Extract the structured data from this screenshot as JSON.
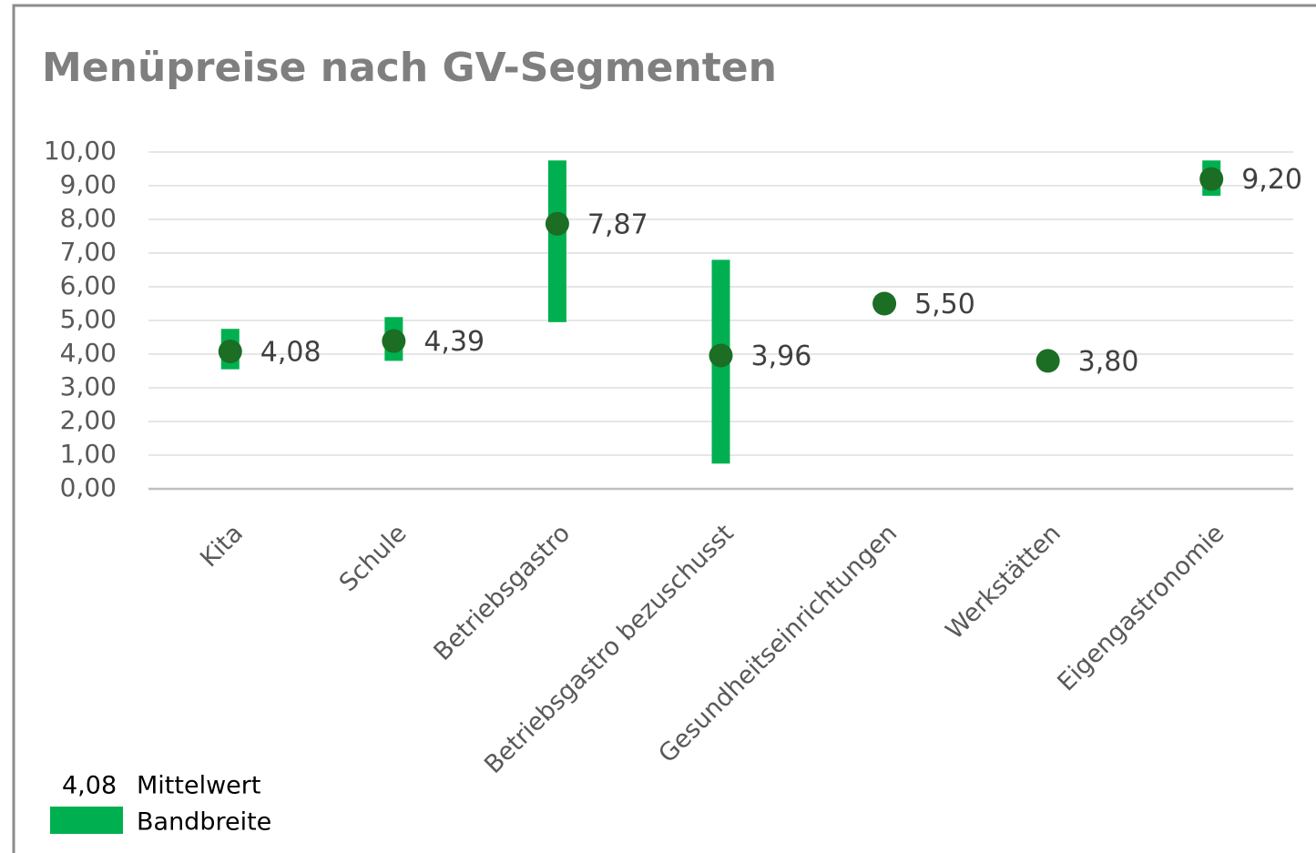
{
  "chart_data": {
    "type": "range",
    "title": "Menüpreise nach GV-Segmenten",
    "categories": [
      "Kita",
      "Schule",
      "Betriebsgastro",
      "Betriebsgastro bezuschusst",
      "Gesundheitseinrichtungen",
      "Werkstätten",
      "Eigengastronomie"
    ],
    "series": [
      {
        "name": "Mittelwert",
        "color": "#1b6e23",
        "values": [
          4.08,
          4.39,
          7.87,
          3.96,
          5.5,
          3.8,
          9.2
        ],
        "value_labels": [
          "4,08",
          "4,39",
          "7,87",
          "3,96",
          "5,50",
          "3,80",
          "9,20"
        ]
      },
      {
        "name": "Bandbreite",
        "color": "#00b050",
        "low": [
          3.55,
          3.8,
          4.95,
          0.75,
          null,
          null,
          8.7
        ],
        "high": [
          4.75,
          5.1,
          9.75,
          6.8,
          null,
          null,
          9.75
        ]
      }
    ],
    "ylim": [
      0,
      10
    ],
    "yticks": [
      {
        "value": 0,
        "label": "0,00"
      },
      {
        "value": 1,
        "label": "1,00"
      },
      {
        "value": 2,
        "label": "2,00"
      },
      {
        "value": 3,
        "label": "3,00"
      },
      {
        "value": 4,
        "label": "4,00"
      },
      {
        "value": 5,
        "label": "5,00"
      },
      {
        "value": 6,
        "label": "6,00"
      },
      {
        "value": 7,
        "label": "7,00"
      },
      {
        "value": 8,
        "label": "8,00"
      },
      {
        "value": 9,
        "label": "9,00"
      },
      {
        "value": 10,
        "label": "10,00"
      }
    ],
    "grid": true,
    "legend": "lower left"
  }
}
